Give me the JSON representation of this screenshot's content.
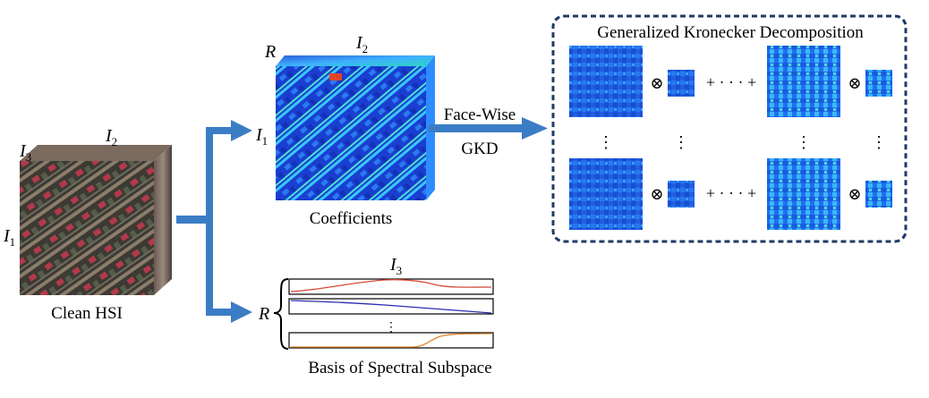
{
  "hsi": {
    "caption": "Clean HSI",
    "dim_i1": "I",
    "dim_i1_sub": "1",
    "dim_i2": "I",
    "dim_i2_sub": "2",
    "dim_i3": "I",
    "dim_i3_sub": "3"
  },
  "coefficients": {
    "caption": "Coefficients",
    "dim_r": "R",
    "dim_i2": "I",
    "dim_i2_sub": "2",
    "dim_i1": "I",
    "dim_i1_sub": "1"
  },
  "spectral": {
    "caption": "Basis of Spectral Subspace",
    "dim_i3": "I",
    "dim_i3_sub": "3",
    "dim_r": "R",
    "vdots": "⋮"
  },
  "gkd_arrow": {
    "line1": "Face-Wise",
    "line2": "GKD"
  },
  "gkd_box": {
    "title": "Generalized Kronecker Decomposition",
    "kron": "⊗",
    "plus_dots": "+ · · · +",
    "vdots": "⋮"
  },
  "colors": {
    "arrow": "#3b7dc4",
    "box_border": "#1f3a66",
    "spectral_red": "#d64b3a",
    "spectral_blue": "#2c2cb0",
    "spectral_orange": "#e0862a"
  }
}
